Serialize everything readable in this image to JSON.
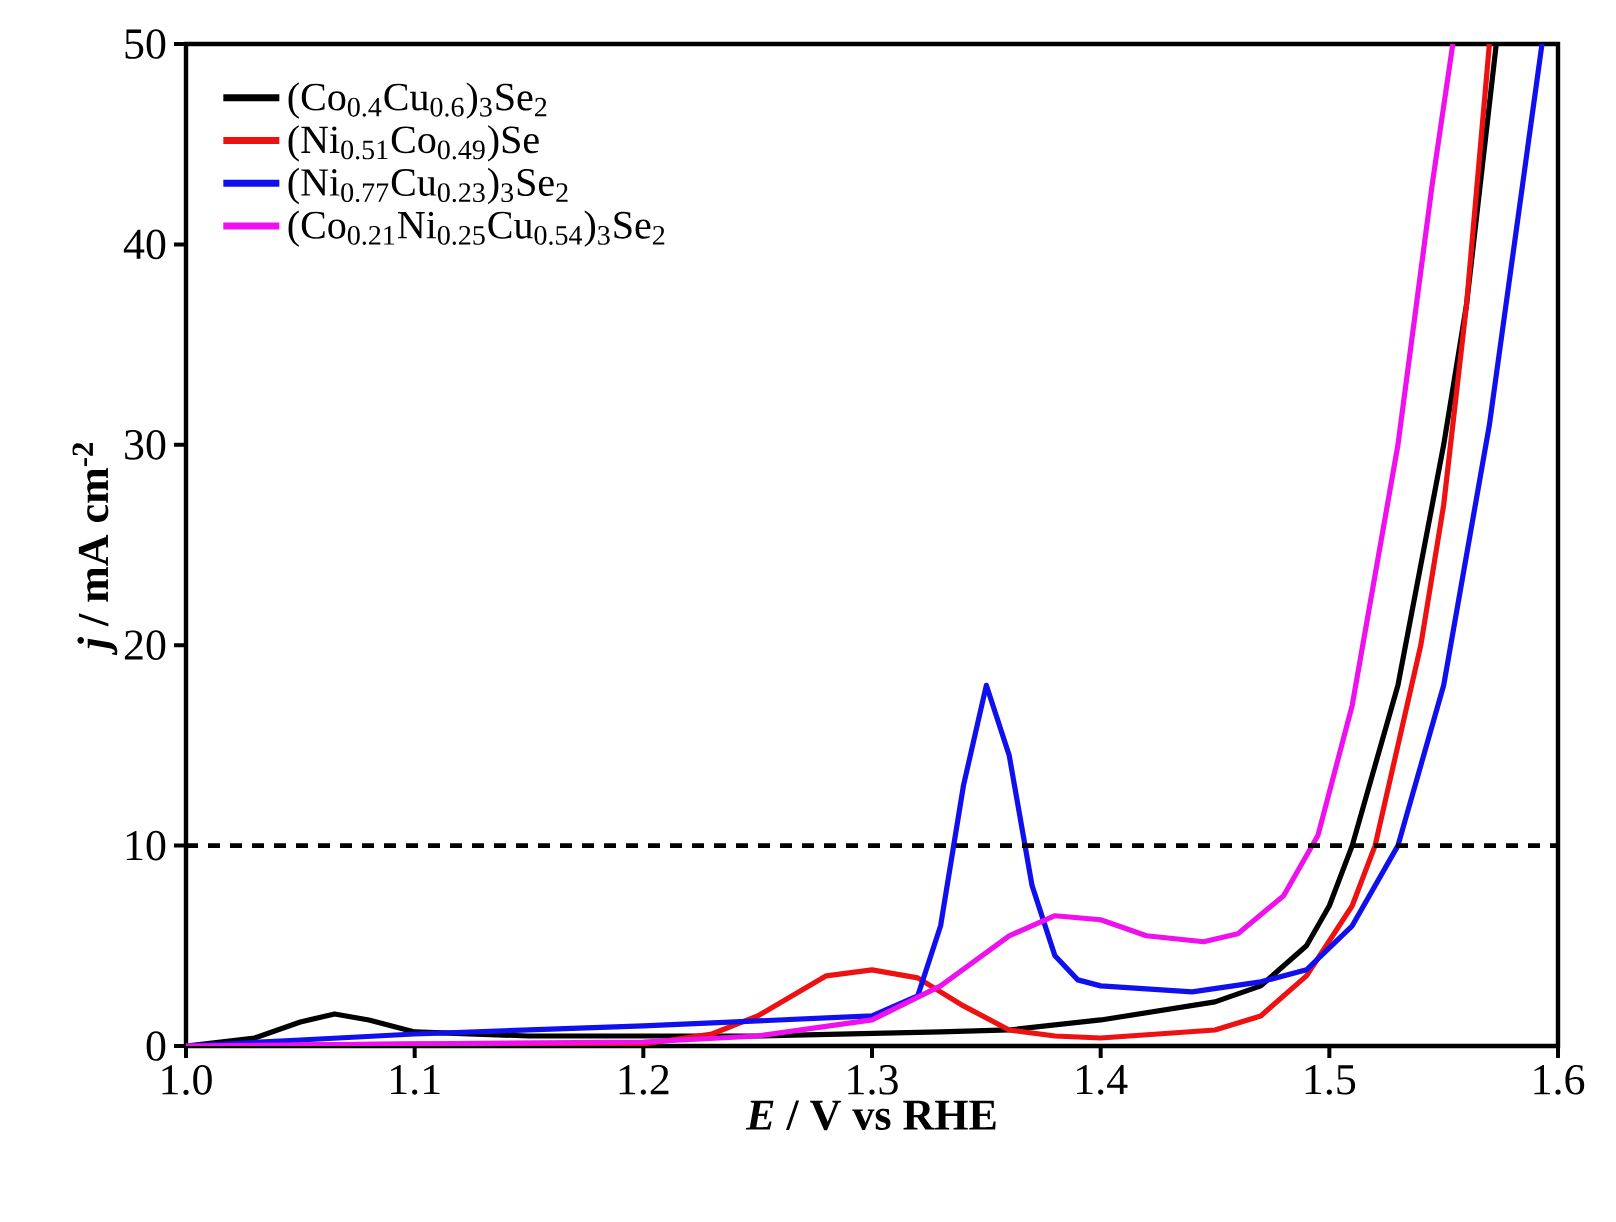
{
  "chart_data": {
    "type": "line",
    "xlabel": "*E* / V vs RHE",
    "ylabel": "*j* / mA cm$^{-2}$",
    "xlim": [
      1.0,
      1.6
    ],
    "ylim": [
      0,
      50
    ],
    "xticks": [
      {
        "value": 1,
        "label": "1.0"
      },
      1.1,
      1.2,
      1.3,
      1.4,
      1.5,
      1.6
    ],
    "yticks": [
      0,
      10,
      20,
      30,
      40,
      50
    ],
    "grid": false,
    "legend": "top left",
    "line_style": "solid",
    "marker": "none",
    "ref_lines": [
      {
        "axis": "y",
        "value": 10,
        "color": "#000000",
        "line_style": "dashed"
      }
    ],
    "series": [
      {
        "name": "(Co$_{0.4}$Cu$_{0.6}$)$_{3}$Se$_{2}$",
        "color": "#000000",
        "x": [
          1.0,
          1.03,
          1.05,
          1.065,
          1.08,
          1.1,
          1.15,
          1.25,
          1.33,
          1.36,
          1.4,
          1.45,
          1.47,
          1.49,
          1.5,
          1.51,
          1.53,
          1.55,
          1.56,
          1.573
        ],
        "values": [
          0,
          0.4,
          1.2,
          1.6,
          1.3,
          0.7,
          0.5,
          0.5,
          0.7,
          0.8,
          1.3,
          2.2,
          3,
          5,
          7,
          10,
          18,
          30,
          37,
          50
        ]
      },
      {
        "name": "(Ni$_{0.51}$Co$_{0.49}$)Se",
        "color": "#ee1111",
        "x": [
          1.0,
          1.1,
          1.2,
          1.23,
          1.25,
          1.28,
          1.3,
          1.32,
          1.34,
          1.36,
          1.38,
          1.4,
          1.45,
          1.47,
          1.49,
          1.51,
          1.52,
          1.54,
          1.55,
          1.56,
          1.57
        ],
        "values": [
          0,
          0.1,
          0.1,
          0.6,
          1.5,
          3.5,
          3.8,
          3.4,
          2,
          0.8,
          0.5,
          0.4,
          0.8,
          1.5,
          3.5,
          7,
          10,
          20,
          27,
          37,
          50
        ]
      },
      {
        "name": "(Ni$_{0.77}$Cu$_{0.23}$)$_{3}$Se$_{2}$",
        "color": "#1010ee",
        "x": [
          1.0,
          1.05,
          1.1,
          1.2,
          1.3,
          1.32,
          1.33,
          1.34,
          1.35,
          1.36,
          1.37,
          1.38,
          1.39,
          1.4,
          1.44,
          1.47,
          1.49,
          1.51,
          1.53,
          1.55,
          1.57,
          1.593
        ],
        "values": [
          0,
          0.3,
          0.6,
          1.0,
          1.5,
          2.5,
          6,
          13,
          18,
          14.5,
          8,
          4.5,
          3.3,
          3,
          2.7,
          3.2,
          3.8,
          6,
          10,
          18,
          31,
          50
        ]
      },
      {
        "name": "(Co$_{0.21}$Ni$_{0.25}$Cu$_{0.54}$)$_{3}$Se$_{2}$",
        "color": "#ee11ee",
        "x": [
          1.0,
          1.2,
          1.25,
          1.3,
          1.33,
          1.36,
          1.38,
          1.4,
          1.42,
          1.445,
          1.46,
          1.48,
          1.495,
          1.51,
          1.53,
          1.545,
          1.554
        ],
        "values": [
          0,
          0.2,
          0.5,
          1.3,
          3,
          5.5,
          6.5,
          6.3,
          5.5,
          5.2,
          5.6,
          7.5,
          10.5,
          17,
          30,
          43,
          50
        ]
      }
    ]
  }
}
